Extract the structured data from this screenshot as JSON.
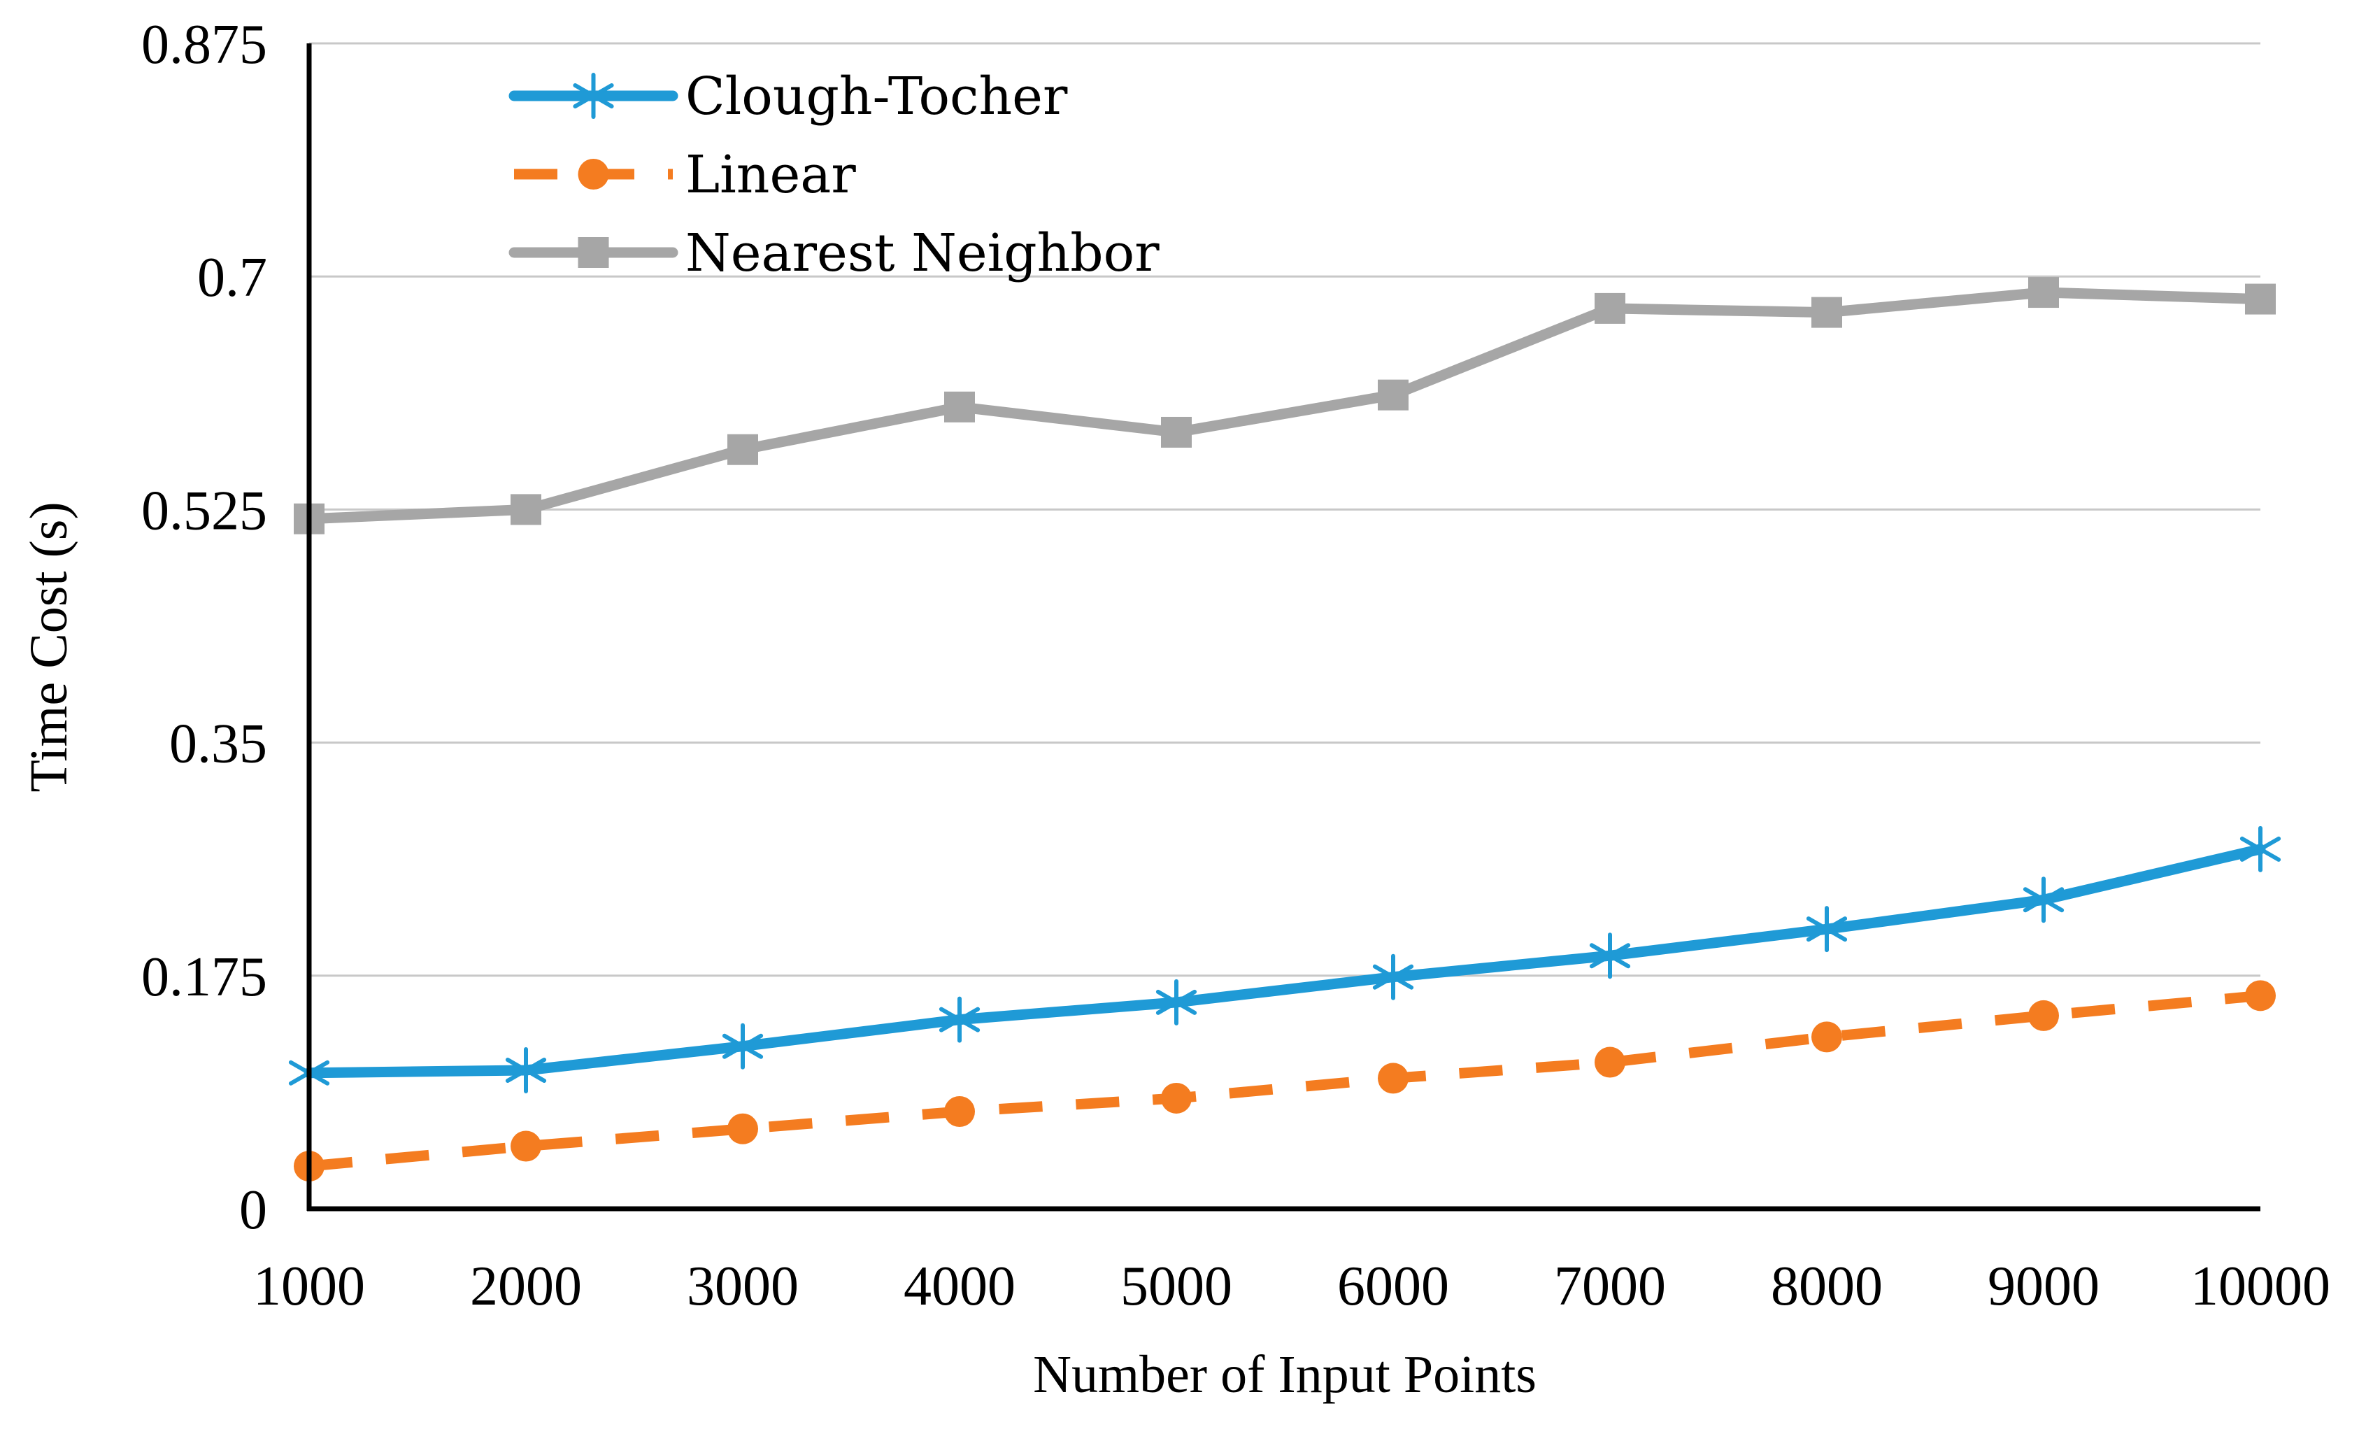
{
  "chart_data": {
    "type": "line",
    "title": "",
    "xlabel": "Number of Input Points",
    "ylabel": "Time Cost (s)",
    "x": [
      1000,
      2000,
      3000,
      4000,
      5000,
      6000,
      7000,
      8000,
      9000,
      10000
    ],
    "x_tick_labels": [
      "1000",
      "2000",
      "3000",
      "4000",
      "5000",
      "6000",
      "7000",
      "8000",
      "9000",
      "10000"
    ],
    "ylim": [
      0,
      0.875
    ],
    "y_ticks": [
      0,
      0.175,
      0.35,
      0.525,
      0.7,
      0.875
    ],
    "y_tick_labels": [
      "0",
      "0.175",
      "0.35",
      "0.525",
      "0.7",
      "0.875"
    ],
    "grid": true,
    "legend_position": "top-left",
    "series": [
      {
        "name": "Clough-Tocher",
        "color": "#1f9ad6",
        "marker": "asterisk",
        "dash": "solid",
        "values": [
          0.102,
          0.104,
          0.122,
          0.142,
          0.155,
          0.174,
          0.19,
          0.21,
          0.232,
          0.27
        ]
      },
      {
        "name": "Linear",
        "color": "#f47c20",
        "marker": "circle",
        "dash": "dashed",
        "values": [
          0.032,
          0.047,
          0.06,
          0.073,
          0.083,
          0.098,
          0.11,
          0.129,
          0.145,
          0.16
        ]
      },
      {
        "name": "Nearest Neighbor",
        "color": "#a6a6a6",
        "marker": "square",
        "dash": "solid",
        "values": [
          0.518,
          0.525,
          0.57,
          0.602,
          0.583,
          0.611,
          0.676,
          0.673,
          0.688,
          0.683
        ]
      }
    ]
  }
}
